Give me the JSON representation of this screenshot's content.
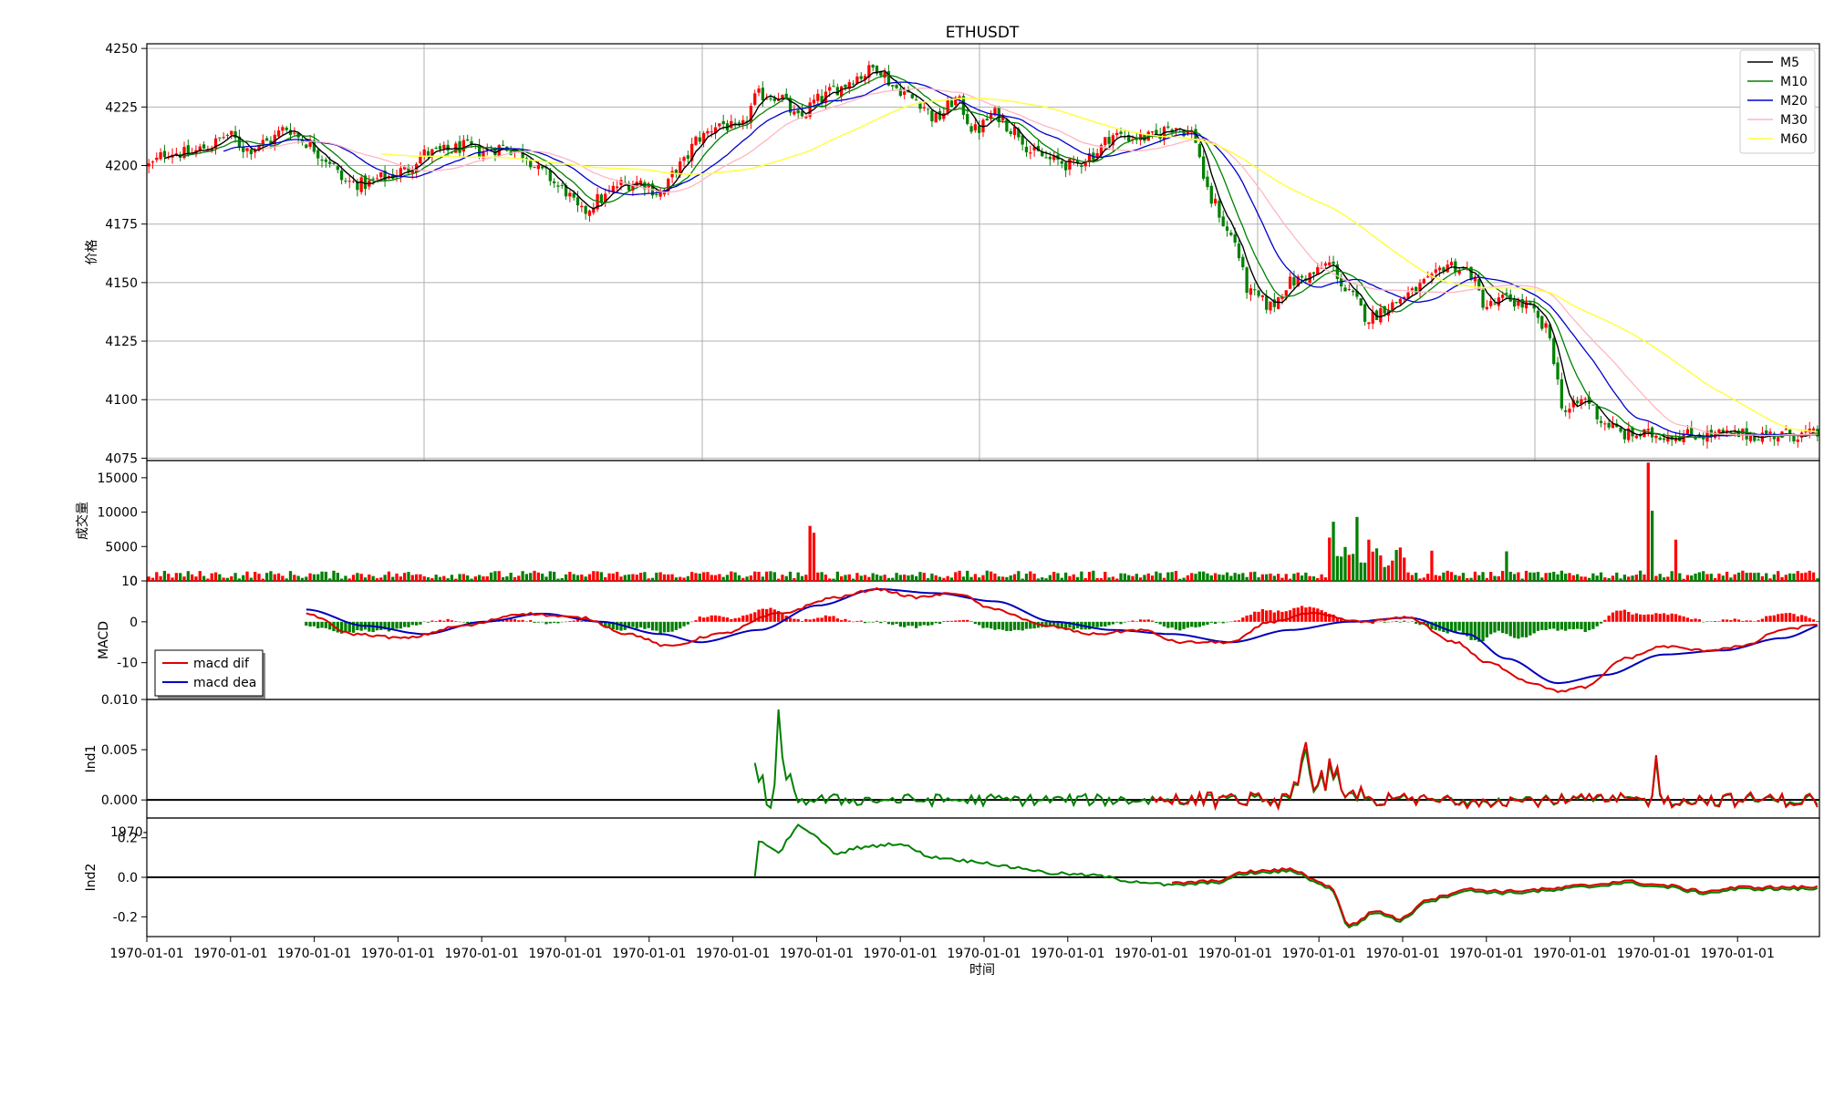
{
  "chart_data": {
    "type": "candlestick",
    "title": "ETHUSDT",
    "xlabel": "时间",
    "x_tick_labels": [
      "1970-01-01",
      "1970-01-01",
      "1970-01-01",
      "1970-01-01",
      "1970-01-01",
      "1970-01-01",
      "1970-01-01",
      "1970-01-01",
      "1970-01-01",
      "1970-01-01",
      "1970-01-01",
      "1970-01-01",
      "1970-01-01",
      "1970-01-01",
      "1970-01-01",
      "1970-01-01",
      "1970-01-01",
      "1970-01-01",
      "1970-01-01",
      "1970-01-01"
    ],
    "clipped_tick_label": "1970-",
    "colors": {
      "up": "#ff0000",
      "down": "#008000",
      "m5": "#000000",
      "m10": "#008000",
      "m20": "#0000cc",
      "m30": "#ffb6c1",
      "m60": "#ffff44",
      "dif": "#dd0000",
      "dea": "#0000bb",
      "grid": "#b0b0b0"
    },
    "panels": [
      {
        "id": "price",
        "ylabel": "价格",
        "ylim": [
          4074,
          4252
        ],
        "y_ticks": [
          4075,
          4100,
          4125,
          4150,
          4175,
          4200,
          4225,
          4250
        ],
        "grid": true,
        "legend": "top-right",
        "legend_entries": [
          "M5",
          "M10",
          "M20",
          "M30",
          "M60"
        ]
      },
      {
        "id": "volume",
        "ylabel": "成交量",
        "ylim": [
          0,
          17500
        ],
        "y_ticks": [
          0,
          5000,
          10000,
          15000
        ],
        "grid": false
      },
      {
        "id": "macd",
        "ylabel": "MACD",
        "ylim": [
          -19,
          10
        ],
        "y_ticks": [
          -10,
          0,
          10
        ],
        "grid": false,
        "legend": "bottom-left",
        "legend_entries": [
          "macd dif",
          "macd dea"
        ]
      },
      {
        "id": "ind1",
        "ylabel": "Ind1",
        "ylim": [
          -0.0018,
          0.01
        ],
        "y_ticks": [
          0.0,
          0.005,
          0.01
        ],
        "grid": false
      },
      {
        "id": "ind2",
        "ylabel": "Ind2",
        "ylim": [
          -0.3,
          0.3
        ],
        "y_ticks": [
          -0.2,
          0.0,
          0.2
        ],
        "grid": false
      }
    ],
    "series": {
      "n_bars": 240,
      "close_anchors": [
        [
          0,
          4200
        ],
        [
          5,
          4206
        ],
        [
          10,
          4205
        ],
        [
          15,
          4208
        ],
        [
          20,
          4213
        ],
        [
          25,
          4207
        ],
        [
          30,
          4210
        ],
        [
          35,
          4216
        ],
        [
          40,
          4210
        ],
        [
          45,
          4203
        ],
        [
          50,
          4193
        ],
        [
          55,
          4192
        ],
        [
          60,
          4195
        ],
        [
          65,
          4198
        ],
        [
          70,
          4205
        ],
        [
          75,
          4206
        ],
        [
          80,
          4208
        ],
        [
          85,
          4206
        ],
        [
          90,
          4208
        ],
        [
          95,
          4205
        ],
        [
          100,
          4197
        ],
        [
          105,
          4190
        ],
        [
          110,
          4180
        ],
        [
          115,
          4186
        ],
        [
          120,
          4192
        ],
        [
          125,
          4193
        ],
        [
          130,
          4188
        ],
        [
          135,
          4200
        ],
        [
          140,
          4212
        ],
        [
          145,
          4218
        ],
        [
          150,
          4215
        ],
        [
          155,
          4230
        ],
        [
          160,
          4230
        ],
        [
          165,
          4220
        ],
        [
          170,
          4228
        ],
        [
          175,
          4233
        ],
        [
          180,
          4238
        ],
        [
          185,
          4242
        ],
        [
          190,
          4233
        ],
        [
          195,
          4228
        ],
        [
          200,
          4220
        ],
        [
          205,
          4228
        ],
        [
          210,
          4215
        ],
        [
          215,
          4222
        ],
        [
          220,
          4215
        ],
        [
          225,
          4205
        ],
        [
          230,
          4202
        ],
        [
          235,
          4200
        ]
      ],
      "close_anchors_2": [
        [
          0,
          4205
        ],
        [
          5,
          4213
        ],
        [
          10,
          4212
        ],
        [
          15,
          4212
        ],
        [
          20,
          4217
        ],
        [
          25,
          4214
        ],
        [
          30,
          4185
        ],
        [
          35,
          4170
        ],
        [
          40,
          4145
        ],
        [
          45,
          4140
        ],
        [
          50,
          4150
        ],
        [
          55,
          4153
        ],
        [
          60,
          4158
        ],
        [
          65,
          4145
        ],
        [
          70,
          4135
        ],
        [
          75,
          4140
        ],
        [
          80,
          4145
        ],
        [
          85,
          4150
        ],
        [
          90,
          4158
        ],
        [
          95,
          4155
        ],
        [
          100,
          4140
        ],
        [
          105,
          4143
        ],
        [
          110,
          4140
        ],
        [
          115,
          4130
        ],
        [
          120,
          4095
        ],
        [
          125,
          4100
        ],
        [
          130,
          4090
        ],
        [
          135,
          4085
        ]
      ],
      "volume_spikes": [
        [
          168,
          8000
        ],
        [
          169,
          7000
        ],
        [
          300,
          6300
        ],
        [
          301,
          8600
        ],
        [
          307,
          9300
        ],
        [
          310,
          6000
        ],
        [
          317,
          4500
        ],
        [
          326,
          4400
        ],
        [
          345,
          4300
        ],
        [
          381,
          17200
        ],
        [
          382,
          10200
        ],
        [
          388,
          6000
        ]
      ],
      "macd_dif_anchors": [
        [
          0,
          2
        ],
        [
          12,
          -3
        ],
        [
          25,
          -4
        ],
        [
          40,
          -1
        ],
        [
          55,
          2
        ],
        [
          70,
          1
        ],
        [
          82,
          -3
        ],
        [
          92,
          -6
        ],
        [
          105,
          -3
        ],
        [
          120,
          2
        ],
        [
          135,
          6
        ],
        [
          145,
          8
        ],
        [
          155,
          6
        ],
        [
          165,
          7
        ],
        [
          175,
          3
        ],
        [
          188,
          -1
        ],
        [
          200,
          -3
        ],
        [
          212,
          -2
        ],
        [
          222,
          -5
        ],
        [
          235,
          -5
        ],
        [
          245,
          0
        ],
        [
          255,
          2
        ],
        [
          268,
          0
        ],
        [
          280,
          1
        ],
        [
          292,
          -5
        ],
        [
          300,
          -10
        ],
        [
          312,
          -15
        ],
        [
          318,
          -17
        ],
        [
          325,
          -16
        ],
        [
          335,
          -9
        ],
        [
          345,
          -6
        ],
        [
          355,
          -7
        ],
        [
          365,
          -6
        ],
        [
          375,
          -2
        ],
        [
          385,
          -0.5
        ],
        [
          395,
          -3
        ],
        [
          403,
          -6
        ],
        [
          410,
          -12
        ],
        [
          420,
          -16
        ]
      ],
      "macd_dea_anchors": [
        [
          0,
          3
        ],
        [
          15,
          -1
        ],
        [
          30,
          -3
        ],
        [
          45,
          0
        ],
        [
          60,
          2
        ],
        [
          75,
          0
        ],
        [
          90,
          -3
        ],
        [
          100,
          -5
        ],
        [
          115,
          -2
        ],
        [
          130,
          4
        ],
        [
          145,
          8
        ],
        [
          160,
          7
        ],
        [
          175,
          5
        ],
        [
          190,
          0
        ],
        [
          205,
          -2
        ],
        [
          220,
          -3
        ],
        [
          235,
          -5
        ],
        [
          250,
          -2
        ],
        [
          265,
          0
        ],
        [
          280,
          1
        ],
        [
          295,
          -3
        ],
        [
          305,
          -9
        ],
        [
          318,
          -15
        ],
        [
          330,
          -13
        ],
        [
          345,
          -8
        ],
        [
          360,
          -7
        ],
        [
          375,
          -4
        ],
        [
          388,
          0
        ],
        [
          400,
          -3
        ],
        [
          410,
          -7
        ],
        [
          420,
          -14
        ]
      ],
      "ind1_first_bar": 165,
      "ind2_first_bar": 165
    }
  }
}
